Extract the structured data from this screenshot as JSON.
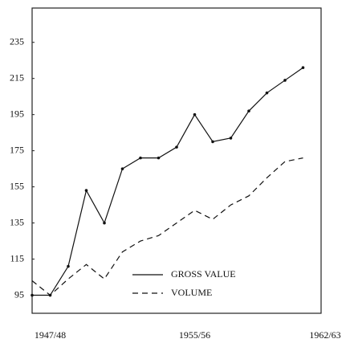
{
  "chart_data": {
    "type": "line",
    "categories": [
      null,
      "1947/48",
      null,
      null,
      null,
      null,
      null,
      null,
      null,
      "1955/56",
      null,
      null,
      null,
      null,
      null,
      null,
      "1962/63"
    ],
    "series": [
      {
        "name": "GROSS VALUE",
        "color": "#111111",
        "line_style": "solid",
        "markers": true,
        "values": [
          95,
          95,
          111,
          153,
          135,
          165,
          171,
          171,
          177,
          195,
          180,
          182,
          197,
          207,
          214,
          221,
          null
        ]
      },
      {
        "name": "VOLUME",
        "color": "#111111",
        "line_style": "dashed",
        "markers": false,
        "values": [
          103,
          95,
          104,
          112,
          104,
          119,
          125,
          128,
          135,
          142,
          137,
          145,
          150,
          160,
          169,
          171,
          null
        ]
      }
    ],
    "ylim": [
      85,
      254
    ],
    "yticks": [
      95,
      115,
      135,
      155,
      175,
      195,
      215,
      235
    ],
    "grid": false
  }
}
